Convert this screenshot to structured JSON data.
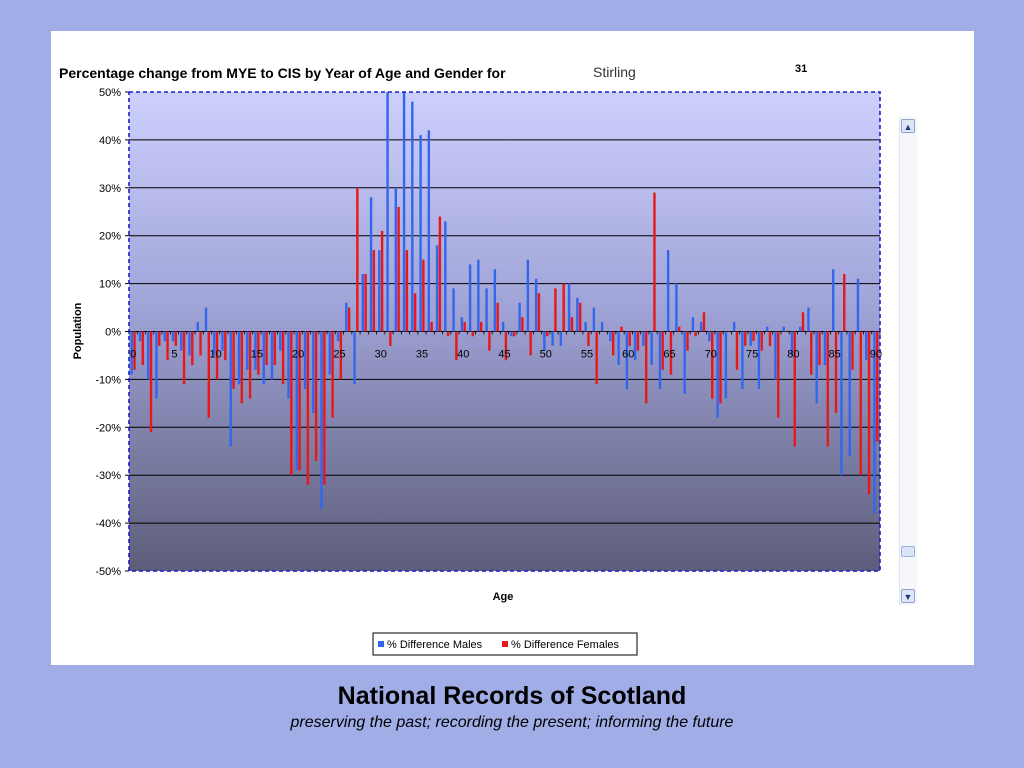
{
  "chart_data": {
    "type": "bar",
    "title": "Percentage change from MYE to CIS by Year of Age and Gender for",
    "area": "Stirling",
    "area_code": "31",
    "xlabel": "Age",
    "ylabel": "Population",
    "ylim": [
      -50,
      50
    ],
    "yticks": [
      "-50%",
      "-40%",
      "-30%",
      "-20%",
      "-10%",
      "0%",
      "10%",
      "20%",
      "30%",
      "40%",
      "50%"
    ],
    "xticks": [
      "0",
      "5",
      "10",
      "15",
      "20",
      "25",
      "30",
      "35",
      "40",
      "45",
      "50",
      "55",
      "60",
      "65",
      "70",
      "75",
      "80",
      "85",
      "90"
    ],
    "grid": true,
    "legend_position": "bottom",
    "series": [
      {
        "name": "% Difference Males",
        "color": "#3366ee",
        "values": [
          -9,
          -2,
          -10,
          -14,
          -2,
          -2,
          -4,
          -5,
          2,
          5,
          -5,
          -4,
          -24,
          -11,
          -8,
          -8,
          -11,
          -10,
          -4,
          -14,
          -29,
          -12,
          -17,
          -37,
          -9,
          -2,
          6,
          -11,
          12,
          28,
          17,
          50,
          30,
          50,
          48,
          41,
          42,
          18,
          23,
          9,
          3,
          14,
          15,
          9,
          13,
          2,
          -1,
          6,
          15,
          11,
          -4,
          -3,
          -3,
          10,
          7,
          2,
          5,
          2,
          -2,
          -7,
          -12,
          -6,
          -3,
          -7,
          -12,
          17,
          10,
          -13,
          3,
          2,
          -2,
          -18,
          -14,
          2,
          -12,
          -3,
          -12,
          1,
          -10,
          1,
          -5,
          1,
          5,
          -15,
          -7,
          13,
          -30,
          -26,
          11,
          -6,
          -38
        ]
      },
      {
        "name": "% Difference Females",
        "color": "#e81818",
        "values": [
          -8,
          -7,
          -21,
          -3,
          -6,
          -3,
          -11,
          -7,
          -5,
          -18,
          -10,
          -6,
          -12,
          -15,
          -14,
          -9,
          -7,
          -7,
          -11,
          -30,
          -29,
          -32,
          -27,
          -32,
          -18,
          -10,
          5,
          30,
          12,
          17,
          21,
          -3,
          26,
          17,
          8,
          15,
          2,
          24,
          -1,
          -6,
          2,
          -1,
          2,
          -4,
          6,
          -6,
          -1,
          3,
          -5,
          8,
          -1,
          9,
          10,
          3,
          6,
          -3,
          -11,
          0,
          -5,
          1,
          -3,
          -4,
          -15,
          29,
          -8,
          -9,
          1,
          -4,
          -1,
          4,
          -14,
          -15,
          0,
          -8,
          -3,
          -2,
          -4,
          -3,
          -18,
          0,
          -24,
          4,
          -9,
          -7,
          -24,
          -17,
          12,
          -8,
          -30,
          -34,
          -23
        ]
      }
    ]
  },
  "footer": {
    "org_name": "National Records of Scotland",
    "tagline": "preserving the past; recording the present; informing the future"
  }
}
